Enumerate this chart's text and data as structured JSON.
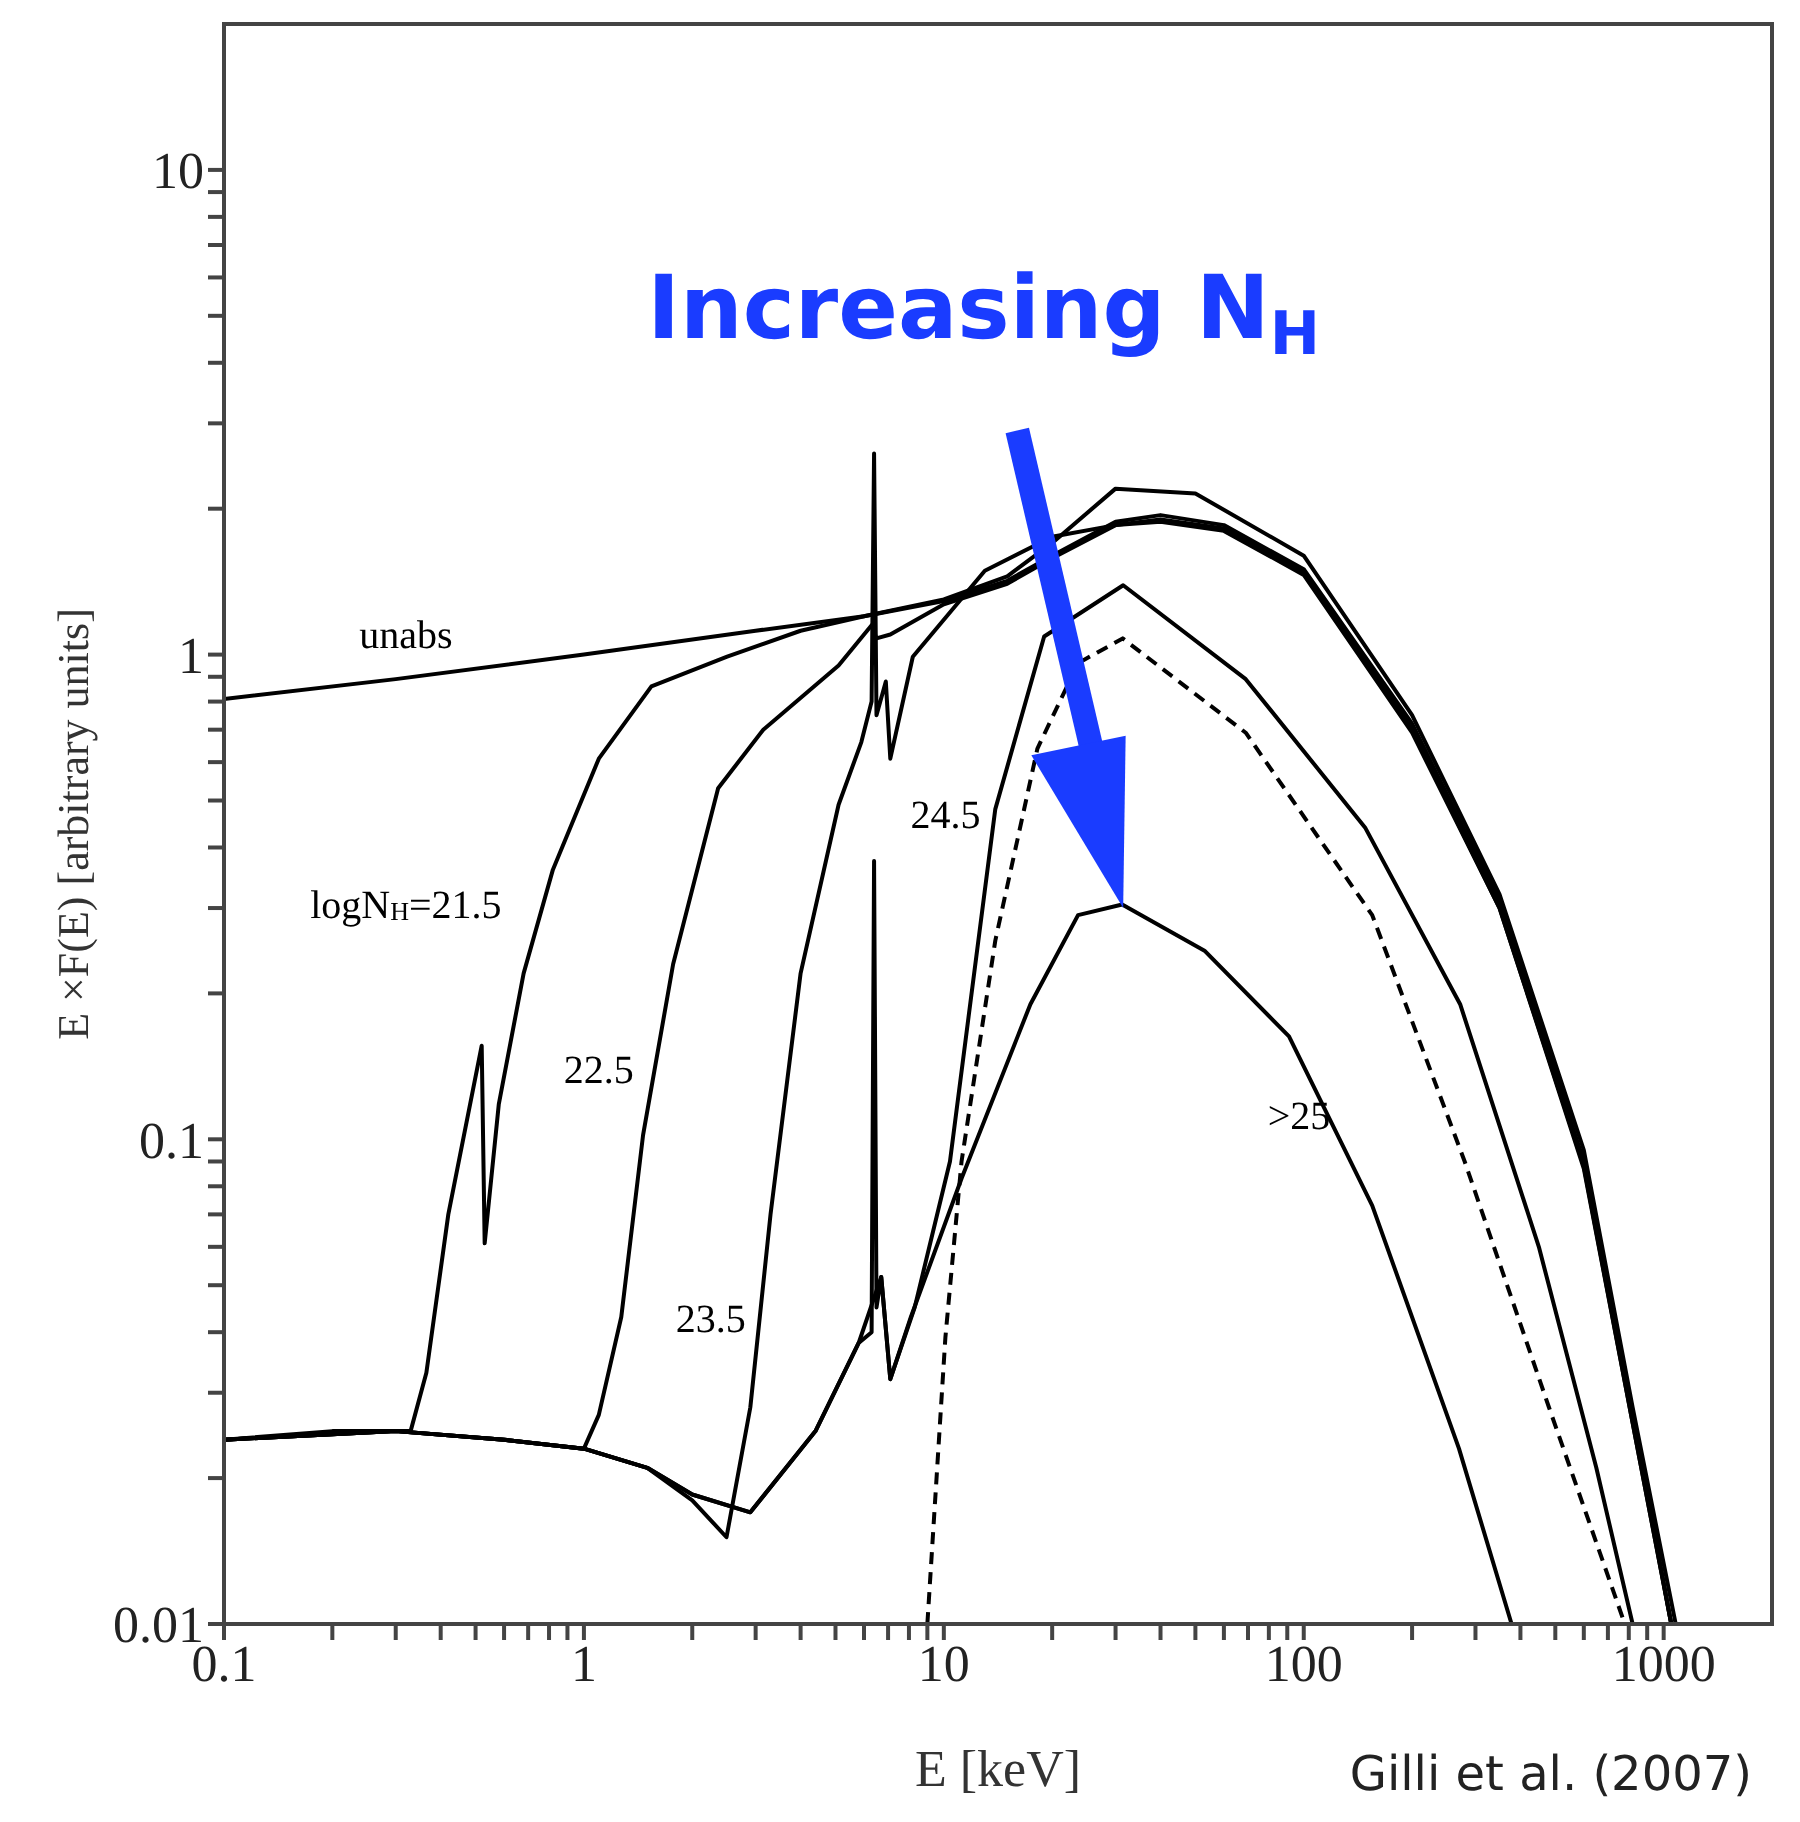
{
  "chart_data": {
    "type": "line",
    "xlabel": "E [keV]",
    "ylabel": "E ×F(E) [arbitrary units]",
    "log": "xy",
    "xlim": [
      0.1,
      2000
    ],
    "ylim": [
      0.01,
      20
    ],
    "xticks": [
      0.1,
      {
        "value": 0.2,
        "label": null
      },
      {
        "value": 0.3,
        "label": null
      },
      {
        "value": 0.4,
        "label": null
      },
      {
        "value": 0.5,
        "label": null
      },
      {
        "value": 0.6,
        "label": null
      },
      {
        "value": 0.7,
        "label": null
      },
      {
        "value": 0.8,
        "label": null
      },
      {
        "value": 0.9,
        "label": null
      },
      1,
      {
        "value": 2,
        "label": null
      },
      {
        "value": 3,
        "label": null
      },
      {
        "value": 4,
        "label": null
      },
      {
        "value": 5,
        "label": null
      },
      {
        "value": 6,
        "label": null
      },
      {
        "value": 7,
        "label": null
      },
      {
        "value": 8,
        "label": null
      },
      {
        "value": 9,
        "label": null
      },
      10,
      {
        "value": 20,
        "label": null
      },
      {
        "value": 30,
        "label": null
      },
      {
        "value": 40,
        "label": null
      },
      {
        "value": 50,
        "label": null
      },
      {
        "value": 60,
        "label": null
      },
      {
        "value": 70,
        "label": null
      },
      {
        "value": 80,
        "label": null
      },
      {
        "value": 90,
        "label": null
      },
      100,
      {
        "value": 200,
        "label": null
      },
      {
        "value": 300,
        "label": null
      },
      {
        "value": 400,
        "label": null
      },
      {
        "value": 500,
        "label": null
      },
      {
        "value": 600,
        "label": null
      },
      {
        "value": 700,
        "label": null
      },
      {
        "value": 800,
        "label": null
      },
      {
        "value": 900,
        "label": null
      },
      1000
    ],
    "yticks": [
      0.01,
      {
        "value": 0.02,
        "label": null
      },
      {
        "value": 0.03,
        "label": null
      },
      {
        "value": 0.04,
        "label": null
      },
      {
        "value": 0.05,
        "label": null
      },
      {
        "value": 0.06,
        "label": null
      },
      {
        "value": 0.07,
        "label": null
      },
      {
        "value": 0.08,
        "label": null
      },
      {
        "value": 0.09,
        "label": null
      },
      0.1,
      {
        "value": 0.2,
        "label": null
      },
      {
        "value": 0.3,
        "label": null
      },
      {
        "value": 0.4,
        "label": null
      },
      {
        "value": 0.5,
        "label": null
      },
      {
        "value": 0.6,
        "label": null
      },
      {
        "value": 0.7,
        "label": null
      },
      {
        "value": 0.8,
        "label": null
      },
      {
        "value": 0.9,
        "label": null
      },
      1,
      {
        "value": 2,
        "label": null
      },
      {
        "value": 3,
        "label": null
      },
      {
        "value": 4,
        "label": null
      },
      {
        "value": 5,
        "label": null
      },
      {
        "value": 6,
        "label": null
      },
      {
        "value": 7,
        "label": null
      },
      {
        "value": 8,
        "label": null
      },
      {
        "value": 9,
        "label": null
      },
      10
    ],
    "series": [
      {
        "name": "unabs",
        "color": "#000000",
        "line_style": "solid",
        "x": [
          0.1,
          0.3,
          1,
          3,
          6,
          10,
          15,
          20,
          30,
          50,
          100,
          200,
          350,
          600,
          820,
          1080
        ],
        "values": [
          0.81,
          0.89,
          1.0,
          1.12,
          1.2,
          1.3,
          1.45,
          1.7,
          2.2,
          2.15,
          1.6,
          0.75,
          0.32,
          0.095,
          0.028,
          0.01
        ]
      },
      {
        "name": "logN$_{H}$=21.5",
        "color": "#000000",
        "line_style": "solid",
        "x": [
          0.1,
          0.2,
          0.33,
          0.365,
          0.42,
          0.52,
          0.53,
          0.58,
          0.68,
          0.82,
          1.1,
          1.54,
          2.5,
          4,
          6,
          10,
          15,
          20,
          30,
          40,
          60,
          100,
          200,
          350,
          600,
          820,
          1050
        ],
        "values": [
          0.024,
          0.025,
          0.025,
          0.033,
          0.07,
          0.156,
          0.061,
          0.118,
          0.22,
          0.36,
          0.61,
          0.86,
          0.99,
          1.12,
          1.2,
          1.29,
          1.42,
          1.6,
          1.88,
          1.94,
          1.85,
          1.5,
          0.72,
          0.31,
          0.09,
          0.027,
          0.01
        ]
      },
      {
        "name": "22.5",
        "color": "#000000",
        "line_style": "solid",
        "x": [
          0.1,
          0.3,
          0.6,
          1.0,
          1.1,
          1.27,
          1.46,
          1.77,
          2.36,
          3.15,
          5.1,
          6.3,
          6.5,
          7.1,
          10,
          15,
          20,
          30,
          40,
          60,
          100,
          200,
          350,
          600,
          820,
          1050
        ],
        "values": [
          0.024,
          0.025,
          0.024,
          0.023,
          0.027,
          0.043,
          0.102,
          0.23,
          0.53,
          0.7,
          0.95,
          1.15,
          1.08,
          1.1,
          1.27,
          1.4,
          1.58,
          1.85,
          1.9,
          1.82,
          1.48,
          0.7,
          0.3,
          0.088,
          0.026,
          0.01
        ]
      },
      {
        "name": "23.5",
        "color": "#000000",
        "line_style": "solid",
        "x": [
          0.1,
          0.3,
          0.6,
          1,
          1.5,
          2,
          2.49,
          2.9,
          3.3,
          4,
          5.1,
          5.9,
          6.3,
          6.4,
          6.5,
          6.9,
          7.1,
          8.2,
          13,
          20,
          30,
          40,
          60,
          100,
          200,
          350,
          600,
          820,
          1050
        ],
        "values": [
          0.024,
          0.025,
          0.024,
          0.023,
          0.021,
          0.018,
          0.0151,
          0.028,
          0.07,
          0.22,
          0.49,
          0.66,
          0.8,
          2.6,
          0.75,
          0.88,
          0.61,
          0.99,
          1.49,
          1.75,
          1.85,
          1.88,
          1.8,
          1.46,
          0.69,
          0.3,
          0.087,
          0.026,
          0.01
        ]
      },
      {
        "name": "24.5",
        "color": "#000000",
        "line_style": "solid",
        "x": [
          0.1,
          0.3,
          0.6,
          1,
          1.5,
          2,
          2.9,
          4.4,
          5.8,
          6.3,
          6.4,
          6.5,
          6.7,
          7.1,
          8.3,
          10.4,
          13.9,
          19,
          31.5,
          69,
          148,
          272,
          450,
          650,
          820
        ],
        "values": [
          0.024,
          0.025,
          0.024,
          0.023,
          0.021,
          0.0185,
          0.017,
          0.025,
          0.038,
          0.04,
          0.375,
          0.045,
          0.052,
          0.032,
          0.045,
          0.09,
          0.48,
          1.09,
          1.39,
          0.89,
          0.44,
          0.19,
          0.06,
          0.021,
          0.01
        ]
      },
      {
        "name": ">25",
        "color": "#000000",
        "line_style": "solid",
        "x": [
          0.1,
          0.3,
          0.6,
          1,
          1.5,
          2,
          2.9,
          4.4,
          5.8,
          6.7,
          7.1,
          8.1,
          11.2,
          17.4,
          23.6,
          31.3,
          53,
          91,
          155,
          270,
          378
        ],
        "values": [
          0.024,
          0.025,
          0.024,
          0.023,
          0.021,
          0.0185,
          0.017,
          0.025,
          0.038,
          0.052,
          0.032,
          0.043,
          0.083,
          0.19,
          0.29,
          0.305,
          0.245,
          0.163,
          0.073,
          0.023,
          0.01
        ]
      },
      {
        "color": "#000000",
        "line_style": "dashed",
        "x": [
          9,
          10.1,
          11.2,
          13.9,
          18.2,
          23.6,
          31.4,
          69,
          155,
          280,
          480,
          780
        ],
        "values": [
          0.01,
          0.039,
          0.09,
          0.257,
          0.64,
          0.96,
          1.08,
          0.69,
          0.29,
          0.09,
          0.028,
          0.01
        ]
      }
    ],
    "annotations": [
      "Increasing N$_{H}$",
      "Gilli et al. (2007)"
    ]
  }
}
